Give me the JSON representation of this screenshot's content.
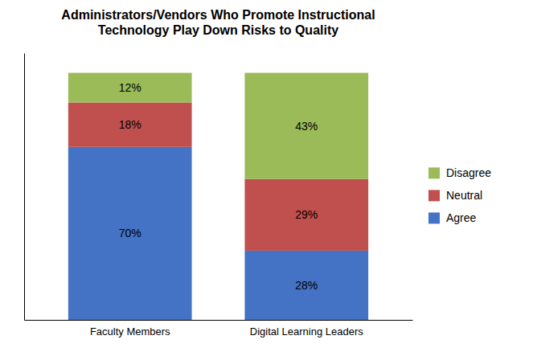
{
  "chart_data": {
    "type": "bar",
    "stacked": true,
    "title": "Administrators/Vendors Who Promote Instructional\nTechnology Play Down Risks to Quality",
    "categories": [
      "Faculty Members",
      "Digital Learning Leaders"
    ],
    "series": [
      {
        "name": "Agree",
        "color": "#4472C4",
        "values": [
          70,
          28
        ],
        "value_labels": [
          "70%",
          "28%"
        ]
      },
      {
        "name": "Neutral",
        "color": "#C0504D",
        "values": [
          18,
          29
        ],
        "value_labels": [
          "18%",
          "29%"
        ]
      },
      {
        "name": "Disagree",
        "color": "#9BBB59",
        "values": [
          12,
          43
        ],
        "value_labels": [
          "12%",
          "43%"
        ]
      }
    ],
    "ylim": [
      0,
      108
    ],
    "data_labels": true,
    "tick_labels": "x",
    "legend": "right"
  }
}
